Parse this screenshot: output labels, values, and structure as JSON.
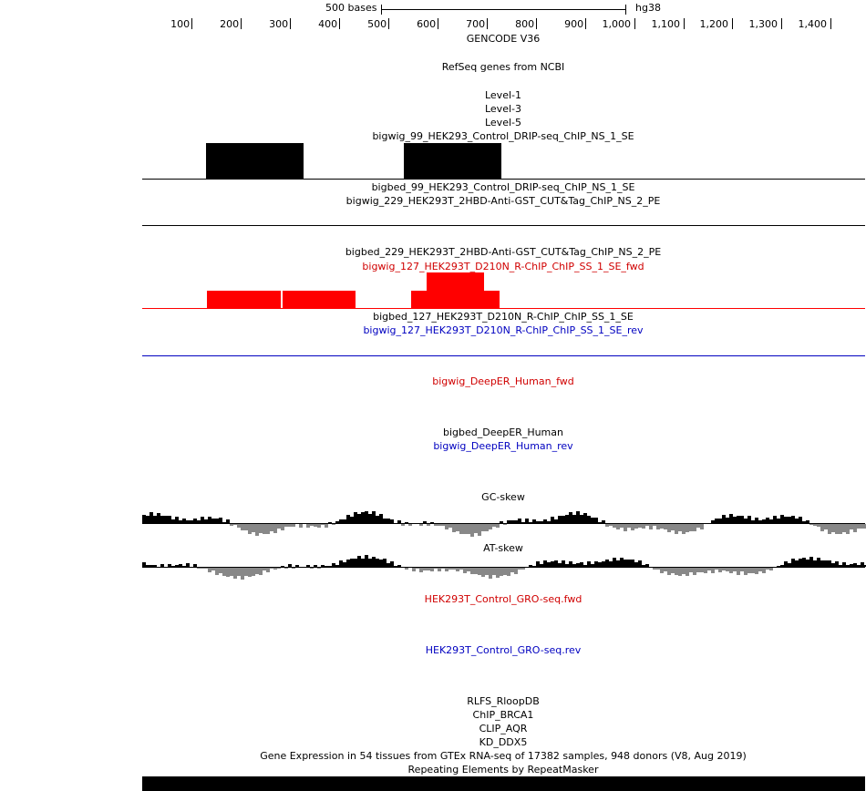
{
  "ruler": {
    "scale_label": "500 bases",
    "assembly": "hg38",
    "ticks": [
      "100",
      "200",
      "300",
      "400",
      "500",
      "600",
      "700",
      "800",
      "900",
      "1,000",
      "1,100",
      "1,200",
      "1,300",
      "1,400"
    ]
  },
  "tracks": {
    "gencode": "GENCODE V36",
    "refseq": "RefSeq genes from NCBI",
    "level1": "Level-1",
    "level3": "Level-3",
    "level5": "Level-5",
    "wig99": "bigwig_99_HEK293_Control_DRIP-seq_ChIP_NS_1_SE",
    "bed99": "bigbed_99_HEK293_Control_DRIP-seq_ChIP_NS_1_SE",
    "wig229": "bigwig_229_HEK293T_2HBD-Anti-GST_CUT&Tag_ChIP_NS_2_PE",
    "bed229": "bigbed_229_HEK293T_2HBD-Anti-GST_CUT&Tag_ChIP_NS_2_PE",
    "wig127fwd": "bigwig_127_HEK293T_D210N_R-ChIP_ChIP_SS_1_SE_fwd",
    "bed127": "bigbed_127_HEK293T_D210N_R-ChIP_ChIP_SS_1_SE",
    "wig127rev": "bigwig_127_HEK293T_D210N_R-ChIP_ChIP_SS_1_SE_rev",
    "deeperFwd": "bigwig_DeepER_Human_fwd",
    "deeperBed": "bigbed_DeepER_Human",
    "deeperRev": "bigwig_DeepER_Human_rev",
    "gcSkew": "GC-skew",
    "atSkew": "AT-skew",
    "groFwd": "HEK293T_Control_GRO-seq.fwd",
    "groRev": "HEK293T_Control_GRO-seq.rev",
    "rlfs": "RLFS_RloopDB",
    "brca1": "ChIP_BRCA1",
    "aqr": "CLIP_AQR",
    "ddx5": "KD_DDX5",
    "gtex": "Gene Expression in 54 tissues from GTEx RNA-seq of 17382 samples, 948 donors (V8, Aug 2019)",
    "rmsk": "Repeating Elements by RepeatMasker"
  },
  "colors": {
    "black": "#000000",
    "red": "#ff0000",
    "blue": "#0000c0",
    "gray": "#888888"
  }
}
